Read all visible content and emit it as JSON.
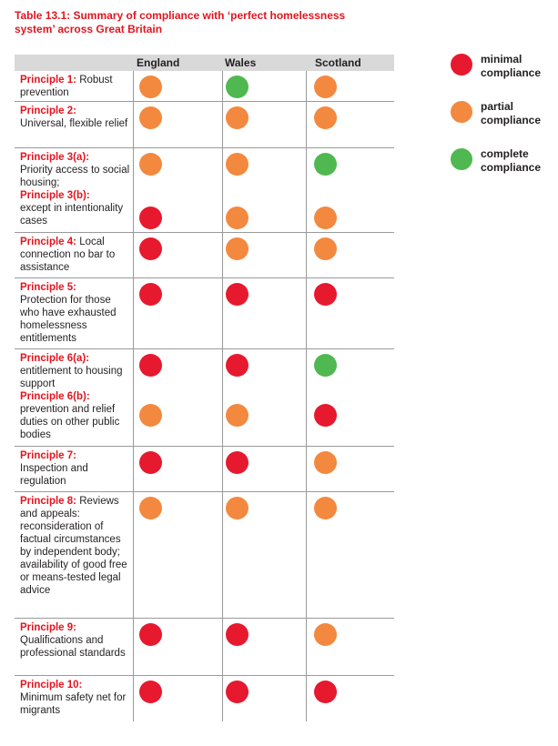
{
  "title": {
    "line1": "Table 13.1: Summary of compliance with ‘perfect homelessness",
    "line2": "system’ across Great Britain"
  },
  "columns": [
    "England",
    "Wales",
    "Scotland"
  ],
  "colors": {
    "red": "#e6192e",
    "orange": "#f3883f",
    "green": "#50b850"
  },
  "legend": [
    {
      "color": "red",
      "line1": "minimal",
      "line2": "compliance"
    },
    {
      "color": "orange",
      "line1": "partial",
      "line2": "compliance"
    },
    {
      "color": "green",
      "line1": "complete",
      "line2": "compliance"
    }
  ],
  "rows": [
    {
      "label": "Principle 1:",
      "text": " Robust prevention",
      "ratings": [
        "orange",
        "green",
        "orange"
      ]
    },
    {
      "label": "Principle 2:",
      "text": " Universal, flexible relief",
      "ratings": [
        "orange",
        "orange",
        "orange"
      ]
    },
    {
      "label": "Principle 3(a):",
      "text": " Priority access to social housing;",
      "ratings": [
        "orange",
        "orange",
        "green"
      ]
    },
    {
      "label": "Principle 3(b):",
      "text": " except in intentionality cases",
      "ratings": [
        "red",
        "orange",
        "orange"
      ]
    },
    {
      "label": "Principle 4:",
      "text": " Local connection no bar to assistance",
      "ratings": [
        "red",
        "orange",
        "orange"
      ]
    },
    {
      "label": "Principle 5:",
      "text": " Protection for those who have exhausted homelessness entitlements",
      "ratings": [
        "red",
        "red",
        "red"
      ]
    },
    {
      "label": "Principle 6(a):",
      "text": " entitlement to housing support",
      "ratings": [
        "red",
        "red",
        "green"
      ]
    },
    {
      "label": "Principle 6(b):",
      "text": " prevention and relief duties on other public bodies",
      "ratings": [
        "orange",
        "orange",
        "red"
      ]
    },
    {
      "label": "Principle 7:",
      "text": " Inspection and regulation",
      "ratings": [
        "red",
        "red",
        "orange"
      ]
    },
    {
      "label": "Principle 8:",
      "text": " Reviews and appeals: reconsideration of factual circumstances by independent body; availability of good free or means-tested legal advice",
      "ratings": [
        "orange",
        "orange",
        "orange"
      ]
    },
    {
      "label": "Principle 9:",
      "text": " Qualifications and professional standards",
      "ratings": [
        "red",
        "red",
        "orange"
      ]
    },
    {
      "label": "Principle 10:",
      "text": " Minimum safety net for migrants",
      "ratings": [
        "red",
        "red",
        "red"
      ]
    }
  ]
}
